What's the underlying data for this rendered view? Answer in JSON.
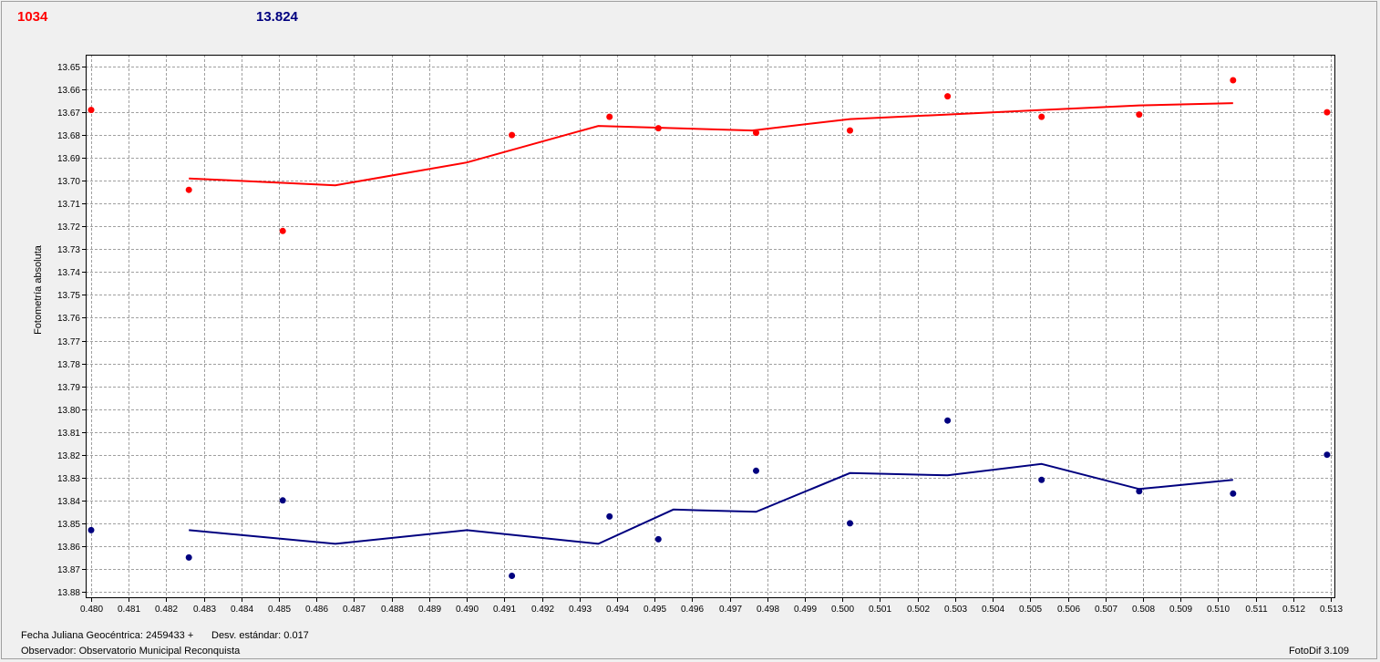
{
  "header": {
    "left_value": "1034",
    "right_value": "13.824"
  },
  "footer": {
    "julian_label": "Fecha Juliana Geocéntrica: 2459433 +",
    "stdev_label": "Desv. estándar: 0.017",
    "observer_label": "Observador: Observatorio Municipal Reconquista",
    "app_version": "FotoDif 3.109"
  },
  "colors": {
    "series_red": "#ff0000",
    "series_blue": "#00007f",
    "grid": "#a0a0a0"
  },
  "chart_data": {
    "type": "scatter",
    "title": "",
    "xlabel": "",
    "ylabel": "Fotometría absoluta",
    "xlim": [
      0.48,
      0.513
    ],
    "ylim": [
      13.65,
      13.88
    ],
    "y_inverted": true,
    "grid": true,
    "x_ticks": [
      "0.480",
      "0.481",
      "0.482",
      "0.483",
      "0.484",
      "0.485",
      "0.486",
      "0.487",
      "0.488",
      "0.489",
      "0.490",
      "0.491",
      "0.492",
      "0.493",
      "0.494",
      "0.495",
      "0.496",
      "0.497",
      "0.498",
      "0.499",
      "0.500",
      "0.501",
      "0.502",
      "0.503",
      "0.504",
      "0.505",
      "0.506",
      "0.507",
      "0.508",
      "0.509",
      "0.510",
      "0.511",
      "0.512",
      "0.513"
    ],
    "y_ticks": [
      "13.65",
      "13.66",
      "13.67",
      "13.68",
      "13.69",
      "13.70",
      "13.71",
      "13.72",
      "13.73",
      "13.74",
      "13.75",
      "13.76",
      "13.77",
      "13.78",
      "13.79",
      "13.80",
      "13.81",
      "13.82",
      "13.83",
      "13.84",
      "13.85",
      "13.86",
      "13.87",
      "13.88"
    ],
    "series": [
      {
        "color": "#ff0000",
        "points": {
          "x": [
            0.48,
            0.4826,
            0.4851,
            0.4912,
            0.4938,
            0.4951,
            0.4977,
            0.5002,
            0.5028,
            0.5053,
            0.5079,
            0.5104,
            0.5129
          ],
          "y": [
            13.669,
            13.704,
            13.722,
            13.68,
            13.672,
            13.677,
            13.679,
            13.678,
            13.663,
            13.672,
            13.671,
            13.656,
            13.67
          ]
        },
        "trend": {
          "x": [
            0.4826,
            0.4865,
            0.49,
            0.4935,
            0.4976,
            0.5002,
            0.5028,
            0.5053,
            0.5079,
            0.5104
          ],
          "y": [
            13.699,
            13.702,
            13.692,
            13.676,
            13.678,
            13.673,
            13.671,
            13.669,
            13.667,
            13.666
          ]
        }
      },
      {
        "color": "#00007f",
        "points": {
          "x": [
            0.48,
            0.4826,
            0.4851,
            0.4912,
            0.4938,
            0.4951,
            0.4977,
            0.5002,
            0.5028,
            0.5053,
            0.5079,
            0.5104,
            0.5129
          ],
          "y": [
            13.853,
            13.865,
            13.84,
            13.873,
            13.847,
            13.857,
            13.827,
            13.85,
            13.805,
            13.831,
            13.836,
            13.837,
            13.82
          ]
        },
        "trend": {
          "x": [
            0.4826,
            0.4865,
            0.49,
            0.4935,
            0.4955,
            0.4977,
            0.5002,
            0.5028,
            0.5053,
            0.5079,
            0.5104
          ],
          "y": [
            13.853,
            13.859,
            13.853,
            13.859,
            13.844,
            13.845,
            13.828,
            13.829,
            13.824,
            13.835,
            13.831
          ]
        }
      }
    ]
  }
}
